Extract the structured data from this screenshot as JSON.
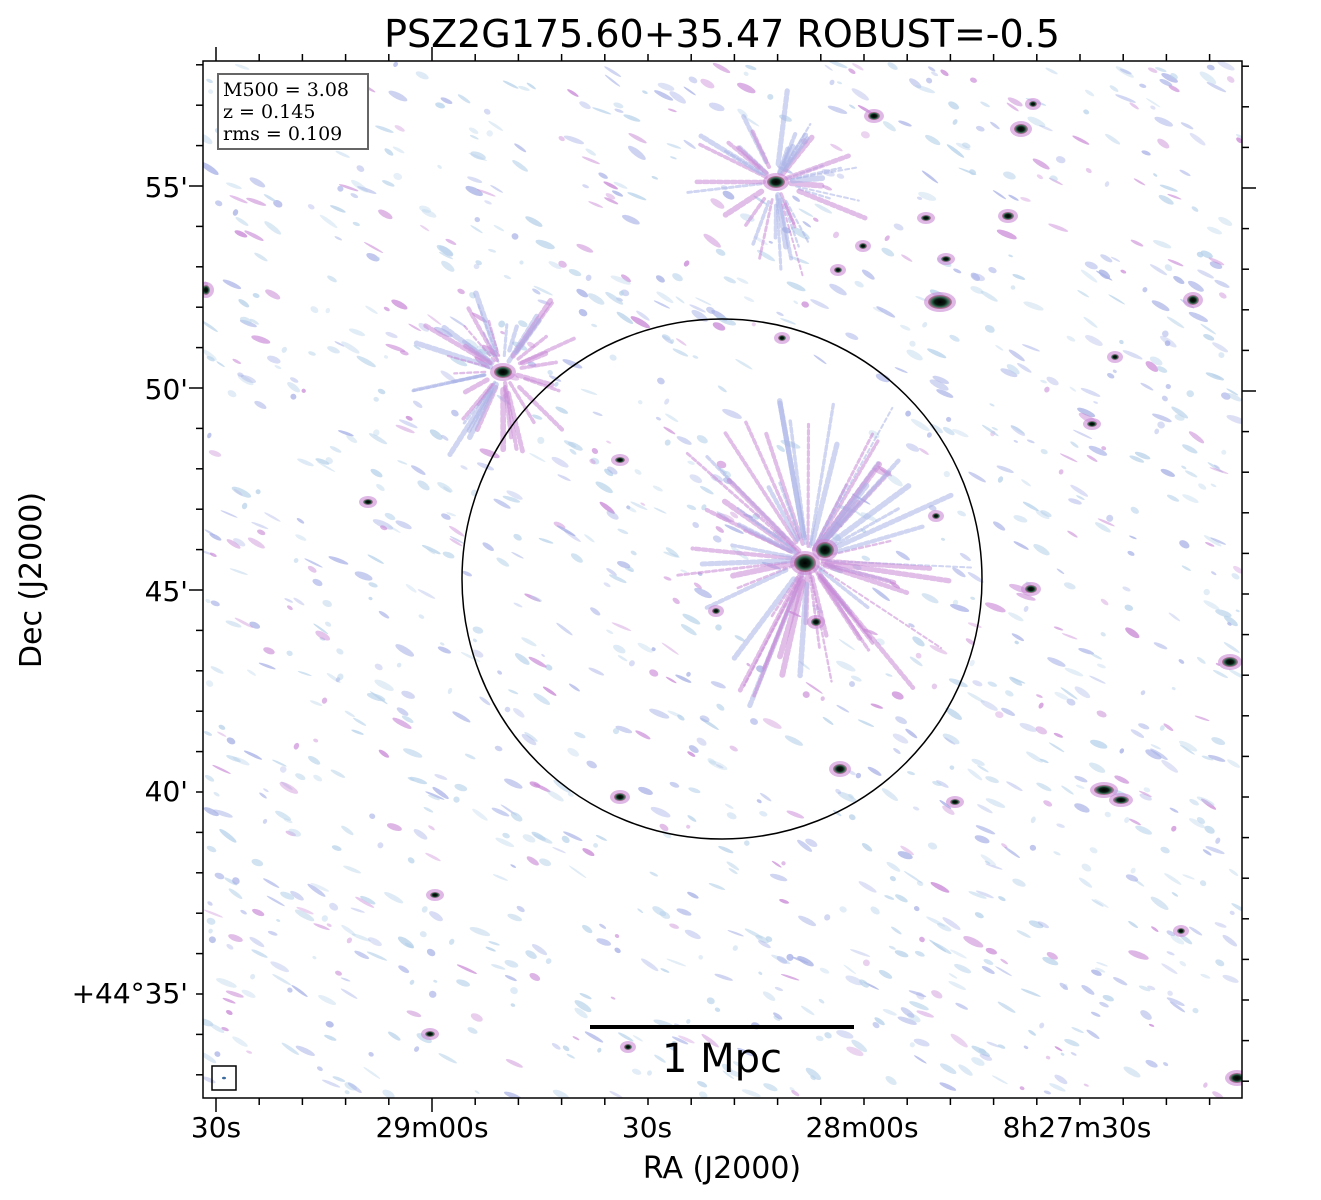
{
  "title": "PSZ2G175.60+35.47 ROBUST=-0.5",
  "info_box": {
    "line1": "M500 = 3.08",
    "line2": "z = 0.145",
    "line3": "rms = 0.109"
  },
  "scalebar": {
    "label": "1 Mpc"
  },
  "x_axis": {
    "label": "RA (J2000)",
    "ticks": [
      "30s",
      "29m00s",
      "30s",
      "28m00s",
      "8h27m30s"
    ]
  },
  "y_axis": {
    "label": "Dec (J2000)",
    "ticks": [
      "55'",
      "50'",
      "45'",
      "40'",
      "+44°35'"
    ]
  },
  "colors": {
    "background": "#ffffff",
    "noise_light": "#b9d3ea",
    "noise_mid": "#a9b2e6",
    "emission": "#c989d6",
    "emission_strong": "#b0497a",
    "core": "#0a1a12",
    "core_rim": "#2e6a50"
  }
}
